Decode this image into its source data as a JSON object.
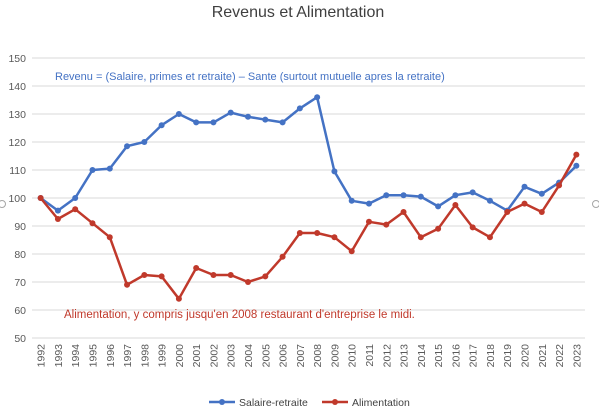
{
  "chart_data": {
    "type": "line",
    "title": "Revenus et  Alimentation",
    "xlabel": "",
    "ylabel": "",
    "ylim": [
      50,
      150
    ],
    "y_ticks": [
      50,
      60,
      70,
      80,
      90,
      100,
      110,
      120,
      130,
      140,
      150
    ],
    "grid": "horizontal",
    "legend_position": "bottom",
    "categories": [
      "1992",
      "1993",
      "1994",
      "1995",
      "1996",
      "1997",
      "1998",
      "1999",
      "2000",
      "2001",
      "2002",
      "2003",
      "2004",
      "2005",
      "2006",
      "2007",
      "2008",
      "2009",
      "2010",
      "2011",
      "2012",
      "2013",
      "2014",
      "2015",
      "2016",
      "2017",
      "2018",
      "2019",
      "2020",
      "2021",
      "2022",
      "2023"
    ],
    "series": [
      {
        "name": "Salaire-retraite",
        "color": "#4472C4",
        "values": [
          100,
          95.5,
          100,
          110,
          110.5,
          118.5,
          120,
          126,
          130,
          127,
          127,
          130.5,
          129,
          128,
          127,
          132,
          136,
          109.5,
          99,
          98,
          101,
          101,
          100.5,
          97,
          101,
          102,
          99,
          95.5,
          104,
          101.5,
          105.5,
          111.5
        ]
      },
      {
        "name": "Alimentation",
        "color": "#C0392B",
        "values": [
          100,
          92.5,
          96,
          91,
          86,
          69,
          72.5,
          72,
          64,
          75,
          72.5,
          72.5,
          70,
          72,
          79,
          87.5,
          87.5,
          86,
          81,
          91.5,
          90.5,
          95,
          86,
          89,
          97.5,
          89.5,
          86,
          95,
          98,
          95,
          104.5,
          115.5
        ]
      }
    ],
    "annotations": [
      {
        "text": "Revenu = (Salaire, primes et retraite) – Sante (surtout mutuelle apres la retraite)",
        "color": "#4472C4"
      },
      {
        "text": "Alimentation, y compris jusqu'en 2008 restaurant d'entreprise le midi.",
        "color": "#C0392B"
      }
    ]
  }
}
